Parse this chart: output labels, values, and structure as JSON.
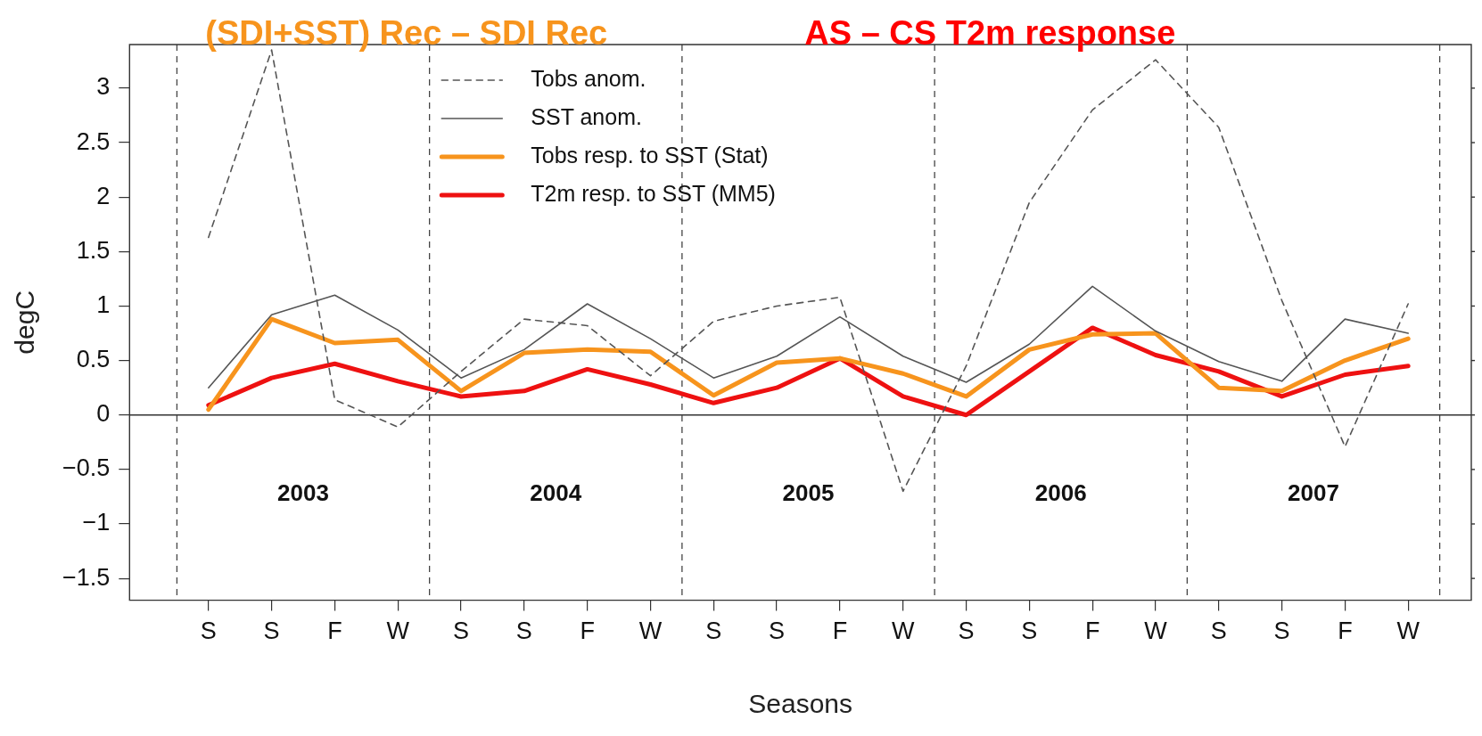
{
  "chart_data": {
    "type": "line",
    "title": "(SDI+SST) Rec – SDI Rec",
    "subtitle": "AS – CS T2m response",
    "xlabel": "Seasons",
    "ylabel": "degC",
    "categories": [
      "S",
      "S",
      "F",
      "W",
      "S",
      "S",
      "F",
      "W",
      "S",
      "S",
      "F",
      "W",
      "S",
      "S",
      "F",
      "W",
      "S",
      "S",
      "F",
      "W"
    ],
    "ylim": [
      -1.7,
      3.4
    ],
    "yticks": [
      {
        "value": -1.5,
        "label": "−1.5"
      },
      {
        "value": -1,
        "label": "−1"
      },
      {
        "value": -0.5,
        "label": "−0.5"
      },
      0,
      0.5,
      1,
      1.5,
      2,
      2.5,
      3
    ],
    "series": [
      {
        "name": "Tobs anom.",
        "color": "#555555",
        "line_style": "dashed",
        "values": [
          1.63,
          3.35,
          0.14,
          -0.11,
          0.4,
          0.88,
          0.82,
          0.36,
          0.86,
          1.0,
          1.08,
          -0.7,
          0.45,
          1.95,
          2.8,
          3.26,
          2.64,
          1.05,
          -0.29,
          1.02
        ]
      },
      {
        "name": "SST anom.",
        "color": "#555555",
        "line_style": "solid",
        "values": [
          0.25,
          0.92,
          1.1,
          0.78,
          0.34,
          0.6,
          1.02,
          0.7,
          0.34,
          0.54,
          0.9,
          0.54,
          0.3,
          0.65,
          1.18,
          0.77,
          0.49,
          0.31,
          0.88,
          0.75
        ]
      },
      {
        "name": "Tobs resp. to SST (Stat)",
        "color": "#f7941d",
        "line_style": "solid",
        "values": [
          0.05,
          0.88,
          0.66,
          0.69,
          0.22,
          0.57,
          0.6,
          0.58,
          0.18,
          0.48,
          0.52,
          0.38,
          0.17,
          0.6,
          0.74,
          0.75,
          0.25,
          0.22,
          0.5,
          0.7
        ]
      },
      {
        "name": "T2m resp. to SST (MM5)",
        "color": "#ee1111",
        "line_style": "solid",
        "values": [
          0.09,
          0.34,
          0.47,
          0.31,
          0.17,
          0.22,
          0.42,
          0.28,
          0.11,
          0.25,
          0.52,
          0.17,
          0,
          0.4,
          0.8,
          0.55,
          0.4,
          0.17,
          0.37,
          0.45
        ]
      }
    ],
    "ref_lines": [
      {
        "axis": "y",
        "value": 0,
        "line_style": "solid"
      }
    ],
    "annotations": [
      "2003",
      "2004",
      "2005",
      "2006",
      "2007"
    ],
    "grid": false,
    "legend": "top",
    "marker": "none"
  }
}
